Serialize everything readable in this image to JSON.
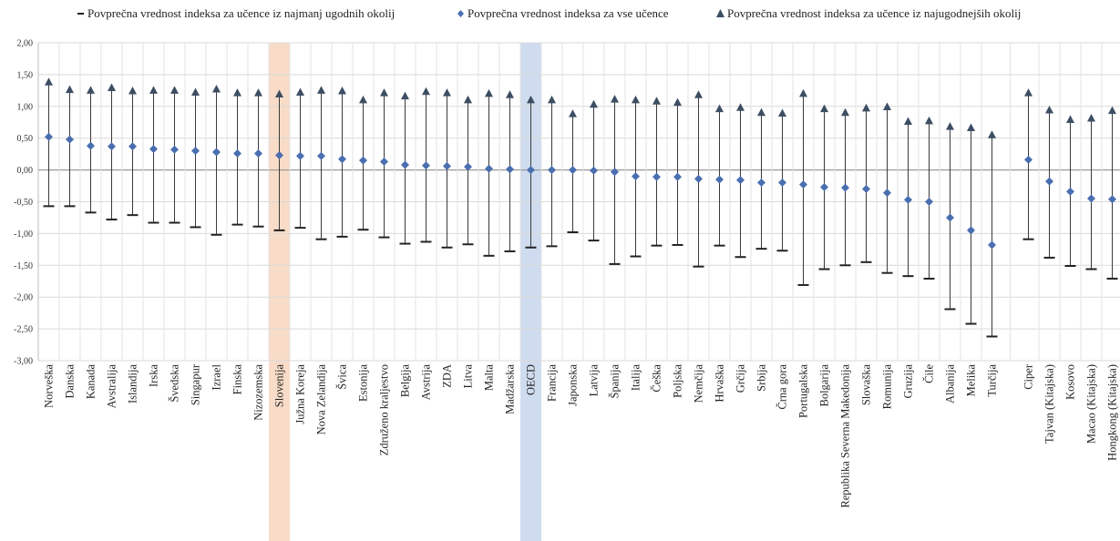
{
  "chart_data": {
    "type": "range-dot",
    "legend": [
      {
        "name": "Povprečna vrednost indeksa za učence iz najmanj ugodnih okolij",
        "marker": "dash"
      },
      {
        "name": "Povprečna vrednost indeksa za vse učence",
        "marker": "diamond"
      },
      {
        "name": "Povprečna vrednost indeksa za učence iz najugodnejših okolij",
        "marker": "triangle"
      }
    ],
    "legend_position": "top",
    "ylim": [
      -3.0,
      2.0
    ],
    "ytick_labels": [
      "2,00",
      "1,50",
      "1,00",
      "0,50",
      "0,00",
      "-0,50",
      "-1,00",
      "-1,50",
      "-2,00",
      "-2,50",
      "-3,00"
    ],
    "grid": true,
    "colors": {
      "marker": "#3d4e63",
      "diamond": "#4a6fb0",
      "line": "#3a3a3a",
      "highlight_slovenia": "#f8dcc8",
      "highlight_oecd": "#cfdcef"
    },
    "highlight_categories": [
      "Slovenija",
      "OECD"
    ],
    "categories": [
      "Norveška",
      "Danska",
      "Kanada",
      "Avstralija",
      "Islandija",
      "Irska",
      "Švedska",
      "Singapur",
      "Izrael",
      "Finska",
      "Nizozemska",
      "Slovenija",
      "Južna Koreja",
      "Nova Zelandija",
      "Švica",
      "Estonija",
      "Združeno kraljestvo",
      "Belgija",
      "Avstrija",
      "ZDA",
      "Litva",
      "Malta",
      "Madžarska",
      "OECD",
      "Francija",
      "Japonska",
      "Latvija",
      "Španija",
      "Italija",
      "Češka",
      "Poljska",
      "Nemčija",
      "Hrvaška",
      "Grčija",
      "Srbija",
      "Črna gora",
      "Portugalska",
      "Bolgarija",
      "Republika Severna Makedonija",
      "Slovaška",
      "Romunija",
      "Gruzija",
      "Čile",
      "Albanija",
      "Melika",
      "Turčija",
      "Ciper",
      "Tajvan (Kitajska)",
      "Kosovo",
      "Macao (Kitajska)",
      "Hongkong (Kitajska)"
    ],
    "series": [
      {
        "name": "Povprečna vrednost indeksa za učence iz najmanj ugodnih okolij",
        "values": [
          -0.57,
          -0.57,
          -0.67,
          -0.78,
          -0.71,
          -0.83,
          -0.83,
          -0.9,
          -1.02,
          -0.86,
          -0.89,
          -0.95,
          -0.91,
          -1.09,
          -1.05,
          -0.94,
          -1.06,
          -1.16,
          -1.13,
          -1.22,
          -1.17,
          -1.35,
          -1.28,
          -1.22,
          -1.2,
          -0.98,
          -1.11,
          -1.48,
          -1.36,
          -1.19,
          -1.18,
          -1.52,
          -1.19,
          -1.37,
          -1.24,
          -1.27,
          -1.81,
          -1.56,
          -1.5,
          -1.45,
          -1.62,
          -1.67,
          -1.71,
          -2.19,
          -2.42,
          -2.62,
          -1.09,
          -1.38,
          -1.51,
          -1.56,
          -1.71
        ]
      },
      {
        "name": "Povprečna vrednost indeksa za vse učence",
        "values": [
          0.52,
          0.48,
          0.38,
          0.37,
          0.37,
          0.33,
          0.32,
          0.3,
          0.28,
          0.26,
          0.26,
          0.23,
          0.22,
          0.22,
          0.17,
          0.15,
          0.13,
          0.08,
          0.07,
          0.06,
          0.05,
          0.02,
          0.01,
          0.0,
          0.0,
          0.0,
          -0.01,
          -0.03,
          -0.1,
          -0.11,
          -0.11,
          -0.14,
          -0.15,
          -0.16,
          -0.2,
          -0.2,
          -0.23,
          -0.27,
          -0.28,
          -0.3,
          -0.36,
          -0.47,
          -0.5,
          -0.75,
          -0.95,
          -1.18,
          0.16,
          -0.18,
          -0.34,
          -0.45,
          -0.46
        ]
      },
      {
        "name": "Povprečna vrednost indeksa za učence iz najugodnejših okolij",
        "values": [
          1.38,
          1.26,
          1.25,
          1.29,
          1.24,
          1.25,
          1.25,
          1.22,
          1.27,
          1.21,
          1.21,
          1.19,
          1.22,
          1.25,
          1.24,
          1.1,
          1.21,
          1.16,
          1.23,
          1.21,
          1.1,
          1.2,
          1.18,
          1.1,
          1.1,
          0.88,
          1.03,
          1.11,
          1.1,
          1.08,
          1.06,
          1.18,
          0.96,
          0.98,
          0.9,
          0.89,
          1.2,
          0.96,
          0.9,
          0.97,
          0.99,
          0.76,
          0.77,
          0.68,
          0.66,
          0.55,
          1.21,
          0.94,
          0.79,
          0.81,
          0.93
        ]
      }
    ]
  }
}
